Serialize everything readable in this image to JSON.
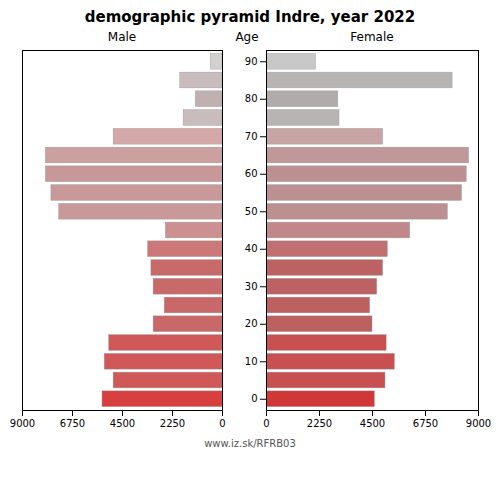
{
  "chart_data": {
    "type": "bar",
    "orientation": "horizontal",
    "title": "demographic pyramid Indre, year 2022",
    "ylabel": "Age",
    "categories": [
      0,
      5,
      10,
      15,
      20,
      25,
      30,
      35,
      40,
      45,
      50,
      55,
      60,
      65,
      70,
      75,
      80,
      85,
      90
    ],
    "series": [
      {
        "name": "Male",
        "values": [
          5400,
          4900,
          5300,
          5100,
          3100,
          2600,
          3100,
          3200,
          3350,
          2550,
          7350,
          7700,
          7950,
          7950,
          4900,
          1750,
          1200,
          1900,
          530
        ],
        "colors": [
          "#d84040",
          "#d05858",
          "#d05858",
          "#d05858",
          "#c86868",
          "#c86868",
          "#c96a6a",
          "#c96a6a",
          "#cc7878",
          "#cc9090",
          "#c99898",
          "#c99898",
          "#c89898",
          "#cda0a0",
          "#d4a8a8",
          "#c8bcbc",
          "#c0b0b0",
          "#c8bcbc",
          "#d5d0d0"
        ]
      },
      {
        "name": "Female",
        "values": [
          4600,
          5050,
          5450,
          5100,
          4500,
          4400,
          4700,
          4950,
          5150,
          6100,
          7700,
          8300,
          8500,
          8600,
          4950,
          3100,
          3050,
          7900,
          2100
        ],
        "colors": [
          "#d03838",
          "#c85050",
          "#c85050",
          "#c85050",
          "#bc6060",
          "#bc6060",
          "#bc6262",
          "#bc6262",
          "#c07070",
          "#c08888",
          "#bc9090",
          "#bc9090",
          "#bc9090",
          "#c09898",
          "#c8a4a4",
          "#b8b4b4",
          "#b0acac",
          "#b8b4b4",
          "#c8c8c8"
        ]
      }
    ],
    "xlim": [
      0,
      9000
    ],
    "xticks": [
      0,
      2250,
      4500,
      6750,
      9000
    ],
    "ylim": [
      -3,
      93
    ],
    "yticks": [
      0,
      10,
      20,
      30,
      40,
      50,
      60,
      70,
      80,
      90
    ],
    "grid": false,
    "annotations": [
      "www.iz.sk/RFRB03"
    ]
  }
}
